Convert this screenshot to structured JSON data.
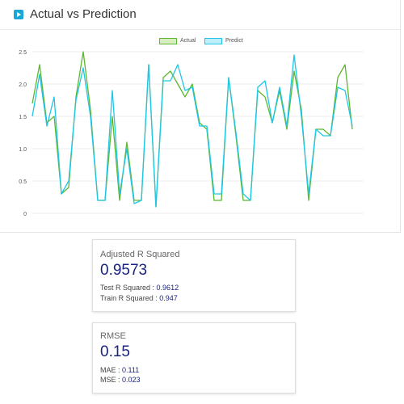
{
  "chart_card": {
    "title": "Actual vs Prediction",
    "icon": "play-icon",
    "accent": "#1aa6d6"
  },
  "chart_data": {
    "type": "line",
    "title": "",
    "xlabel": "",
    "ylabel": "",
    "ylim": [
      0,
      2.5
    ],
    "y_ticks": [
      "0",
      "0.5",
      "1.0",
      "1.5",
      "2.0",
      "2.5"
    ],
    "grid": true,
    "legend_position": "top-center",
    "series": [
      {
        "name": "Actual",
        "color": "#5cb82e",
        "fill": "#d7efc0",
        "values": [
          1.7,
          2.3,
          1.4,
          1.5,
          0.3,
          0.4,
          1.8,
          2.5,
          1.6,
          0.2,
          0.2,
          1.5,
          0.2,
          1.1,
          0.2,
          0.2,
          2.3,
          0.1,
          2.1,
          2.2,
          2.0,
          1.8,
          2.0,
          1.4,
          1.3,
          0.2,
          0.2,
          2.1,
          1.2,
          0.2,
          0.2,
          1.9,
          1.8,
          1.4,
          1.9,
          1.3,
          2.2,
          1.6,
          0.2,
          1.3,
          1.3,
          1.2,
          2.1,
          2.3,
          1.3
        ]
      },
      {
        "name": "Predict",
        "color": "#1ec6ea",
        "fill": "#bdeefa",
        "values": [
          1.5,
          2.15,
          1.35,
          1.8,
          0.3,
          0.5,
          1.75,
          2.25,
          1.5,
          0.2,
          0.2,
          1.9,
          0.3,
          1.0,
          0.15,
          0.2,
          2.3,
          0.1,
          2.05,
          2.05,
          2.3,
          1.9,
          1.95,
          1.35,
          1.35,
          0.3,
          0.3,
          2.1,
          1.25,
          0.3,
          0.2,
          1.95,
          2.05,
          1.4,
          1.95,
          1.35,
          2.45,
          1.5,
          0.3,
          1.3,
          1.2,
          1.2,
          1.95,
          1.9,
          1.35
        ]
      }
    ]
  },
  "adjusted_r2": {
    "title": "Adjusted R Squared",
    "value": "0.9573",
    "test_label": "Test R Squared : ",
    "test_value": "0.9612",
    "train_label": "Train R Squared : ",
    "train_value": "0.947"
  },
  "rmse": {
    "title": "RMSE",
    "value": "0.15",
    "mae_label": "MAE : ",
    "mae_value": "0.111",
    "mse_label": "MSE : ",
    "mse_value": "0.023"
  }
}
